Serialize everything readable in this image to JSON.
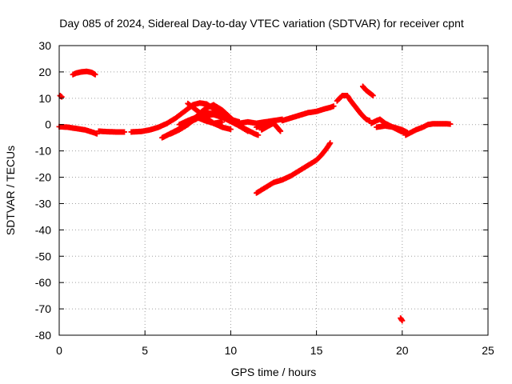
{
  "chart_data": {
    "type": "scatter",
    "title": "Day 085 of 2024, Sidereal Day-to-day VTEC variation (SDTVAR) for receiver cpnt",
    "xlabel": "GPS time / hours",
    "ylabel": "SDTVAR / TECUs",
    "xlim": [
      0,
      25
    ],
    "ylim": [
      -80,
      30
    ],
    "xticks": [
      0,
      5,
      10,
      15,
      20,
      25
    ],
    "yticks": [
      30,
      20,
      10,
      0,
      -10,
      -20,
      -30,
      -40,
      -50,
      -60,
      -70,
      -80
    ],
    "grid": true,
    "legend": "none",
    "marker": "plus",
    "color": "#ff0000",
    "series": [
      {
        "name": "s1",
        "points": [
          [
            0.05,
            11
          ],
          [
            0.15,
            10.5
          ]
        ]
      },
      {
        "name": "s2",
        "points": [
          [
            0.8,
            19
          ],
          [
            1.0,
            19.6
          ],
          [
            1.3,
            20
          ],
          [
            1.6,
            20.2
          ],
          [
            1.9,
            19.8
          ],
          [
            2.1,
            19
          ]
        ]
      },
      {
        "name": "s3",
        "points": [
          [
            0,
            -0.8
          ],
          [
            0.5,
            -1
          ],
          [
            1,
            -1.5
          ],
          [
            1.5,
            -2
          ],
          [
            2,
            -3
          ],
          [
            2.2,
            -3.5
          ]
        ]
      },
      {
        "name": "s4",
        "points": [
          [
            2.3,
            -2.5
          ],
          [
            2.8,
            -2.7
          ],
          [
            3.3,
            -2.8
          ],
          [
            3.8,
            -2.8
          ]
        ]
      },
      {
        "name": "s5",
        "points": [
          [
            4.2,
            -2.8
          ],
          [
            4.8,
            -2.6
          ],
          [
            5.3,
            -2
          ],
          [
            5.8,
            -1
          ],
          [
            6.3,
            0.5
          ],
          [
            6.8,
            2.5
          ],
          [
            7.2,
            4.5
          ],
          [
            7.6,
            6.5
          ],
          [
            7.8,
            7.5
          ],
          [
            8.2,
            8.2
          ],
          [
            8.6,
            7.8
          ],
          [
            9,
            6
          ],
          [
            9.4,
            4
          ],
          [
            9.8,
            2
          ]
        ]
      },
      {
        "name": "s6",
        "points": [
          [
            6,
            -5
          ],
          [
            6.6,
            -3
          ],
          [
            7.2,
            -1
          ],
          [
            7.8,
            1.5
          ],
          [
            8.4,
            3.5
          ],
          [
            9,
            3.8
          ],
          [
            9.6,
            2.5
          ],
          [
            10.2,
            0.5
          ],
          [
            10.8,
            -1.5
          ],
          [
            11.4,
            -3.5
          ],
          [
            11.6,
            -4
          ]
        ]
      },
      {
        "name": "s7",
        "points": [
          [
            6.5,
            -3.5
          ],
          [
            7,
            -2
          ],
          [
            7.5,
            0
          ],
          [
            8,
            3
          ],
          [
            8.5,
            6
          ],
          [
            9,
            7.5
          ],
          [
            9.5,
            5.5
          ],
          [
            10,
            2.5
          ],
          [
            10.5,
            -0.5
          ],
          [
            11,
            -2.5
          ]
        ]
      },
      {
        "name": "s8",
        "points": [
          [
            7,
            0
          ],
          [
            7.5,
            1.5
          ],
          [
            8,
            2.8
          ],
          [
            8.5,
            1.5
          ],
          [
            9,
            0.5
          ],
          [
            9.5,
            1
          ]
        ]
      },
      {
        "name": "s9",
        "points": [
          [
            7.5,
            8
          ],
          [
            8,
            5.5
          ],
          [
            8.5,
            3
          ],
          [
            9,
            0.5
          ],
          [
            9.5,
            -1
          ],
          [
            10,
            -1.8
          ]
        ]
      },
      {
        "name": "s10",
        "points": [
          [
            8.5,
            4.5
          ],
          [
            9,
            4.2
          ],
          [
            9.5,
            3.2
          ],
          [
            10,
            2
          ],
          [
            10.5,
            1
          ]
        ]
      },
      {
        "name": "s11",
        "points": [
          [
            10.5,
            0.5
          ],
          [
            11,
            1
          ],
          [
            11.5,
            0.5
          ],
          [
            12,
            1
          ],
          [
            12.5,
            1.5
          ],
          [
            13,
            2
          ]
        ]
      },
      {
        "name": "s12",
        "points": [
          [
            11.5,
            -1
          ],
          [
            12,
            0
          ],
          [
            12.5,
            0.5
          ],
          [
            12.7,
            -1
          ],
          [
            12.9,
            -2.5
          ]
        ]
      },
      {
        "name": "s13",
        "points": [
          [
            11.8,
            -2
          ],
          [
            12.2,
            -0.5
          ],
          [
            12.5,
            0.5
          ]
        ]
      },
      {
        "name": "s14",
        "points": [
          [
            13,
            1.5
          ],
          [
            13.5,
            2.5
          ],
          [
            14,
            3.5
          ],
          [
            14.5,
            4.5
          ],
          [
            15,
            5
          ],
          [
            15.5,
            6
          ],
          [
            15.8,
            6.5
          ],
          [
            16,
            7
          ]
        ]
      },
      {
        "name": "s15",
        "points": [
          [
            11.5,
            -26
          ],
          [
            12,
            -24
          ],
          [
            12.5,
            -22
          ],
          [
            13,
            -21
          ],
          [
            13.5,
            -19.5
          ],
          [
            14,
            -17.5
          ],
          [
            14.5,
            -15.5
          ],
          [
            15,
            -13.5
          ],
          [
            15.3,
            -11.5
          ],
          [
            15.6,
            -9
          ],
          [
            15.8,
            -7
          ]
        ]
      },
      {
        "name": "s16",
        "points": [
          [
            16.2,
            9
          ],
          [
            16.5,
            11
          ],
          [
            16.8,
            11
          ],
          [
            17,
            9
          ],
          [
            17.3,
            6.5
          ],
          [
            17.6,
            4
          ],
          [
            17.9,
            2
          ],
          [
            18.1,
            1.5
          ]
        ]
      },
      {
        "name": "s17",
        "points": [
          [
            17.7,
            14.5
          ],
          [
            17.9,
            13
          ],
          [
            18.1,
            12
          ],
          [
            18.3,
            11
          ]
        ]
      },
      {
        "name": "s18",
        "points": [
          [
            18.2,
            0.5
          ],
          [
            18.5,
            1.5
          ],
          [
            18.7,
            2
          ],
          [
            19,
            0.5
          ],
          [
            19.3,
            -0.5
          ],
          [
            19.6,
            -1.5
          ],
          [
            19.9,
            -2.5
          ],
          [
            20.1,
            -3
          ]
        ]
      },
      {
        "name": "s19",
        "points": [
          [
            18.5,
            -1
          ],
          [
            19,
            -0.5
          ],
          [
            19.5,
            -1
          ],
          [
            20,
            -2
          ],
          [
            20.3,
            -3
          ]
        ]
      },
      {
        "name": "s20",
        "points": [
          [
            20.2,
            -4
          ],
          [
            20.5,
            -3
          ],
          [
            20.8,
            -2
          ],
          [
            21.2,
            -1
          ],
          [
            21.5,
            0
          ],
          [
            21.8,
            0.3
          ],
          [
            22.2,
            0.3
          ],
          [
            22.6,
            0.3
          ],
          [
            22.8,
            0.2
          ]
        ]
      },
      {
        "name": "s21",
        "points": [
          [
            19.9,
            -73.5
          ],
          [
            20.0,
            -74.5
          ]
        ]
      }
    ]
  }
}
